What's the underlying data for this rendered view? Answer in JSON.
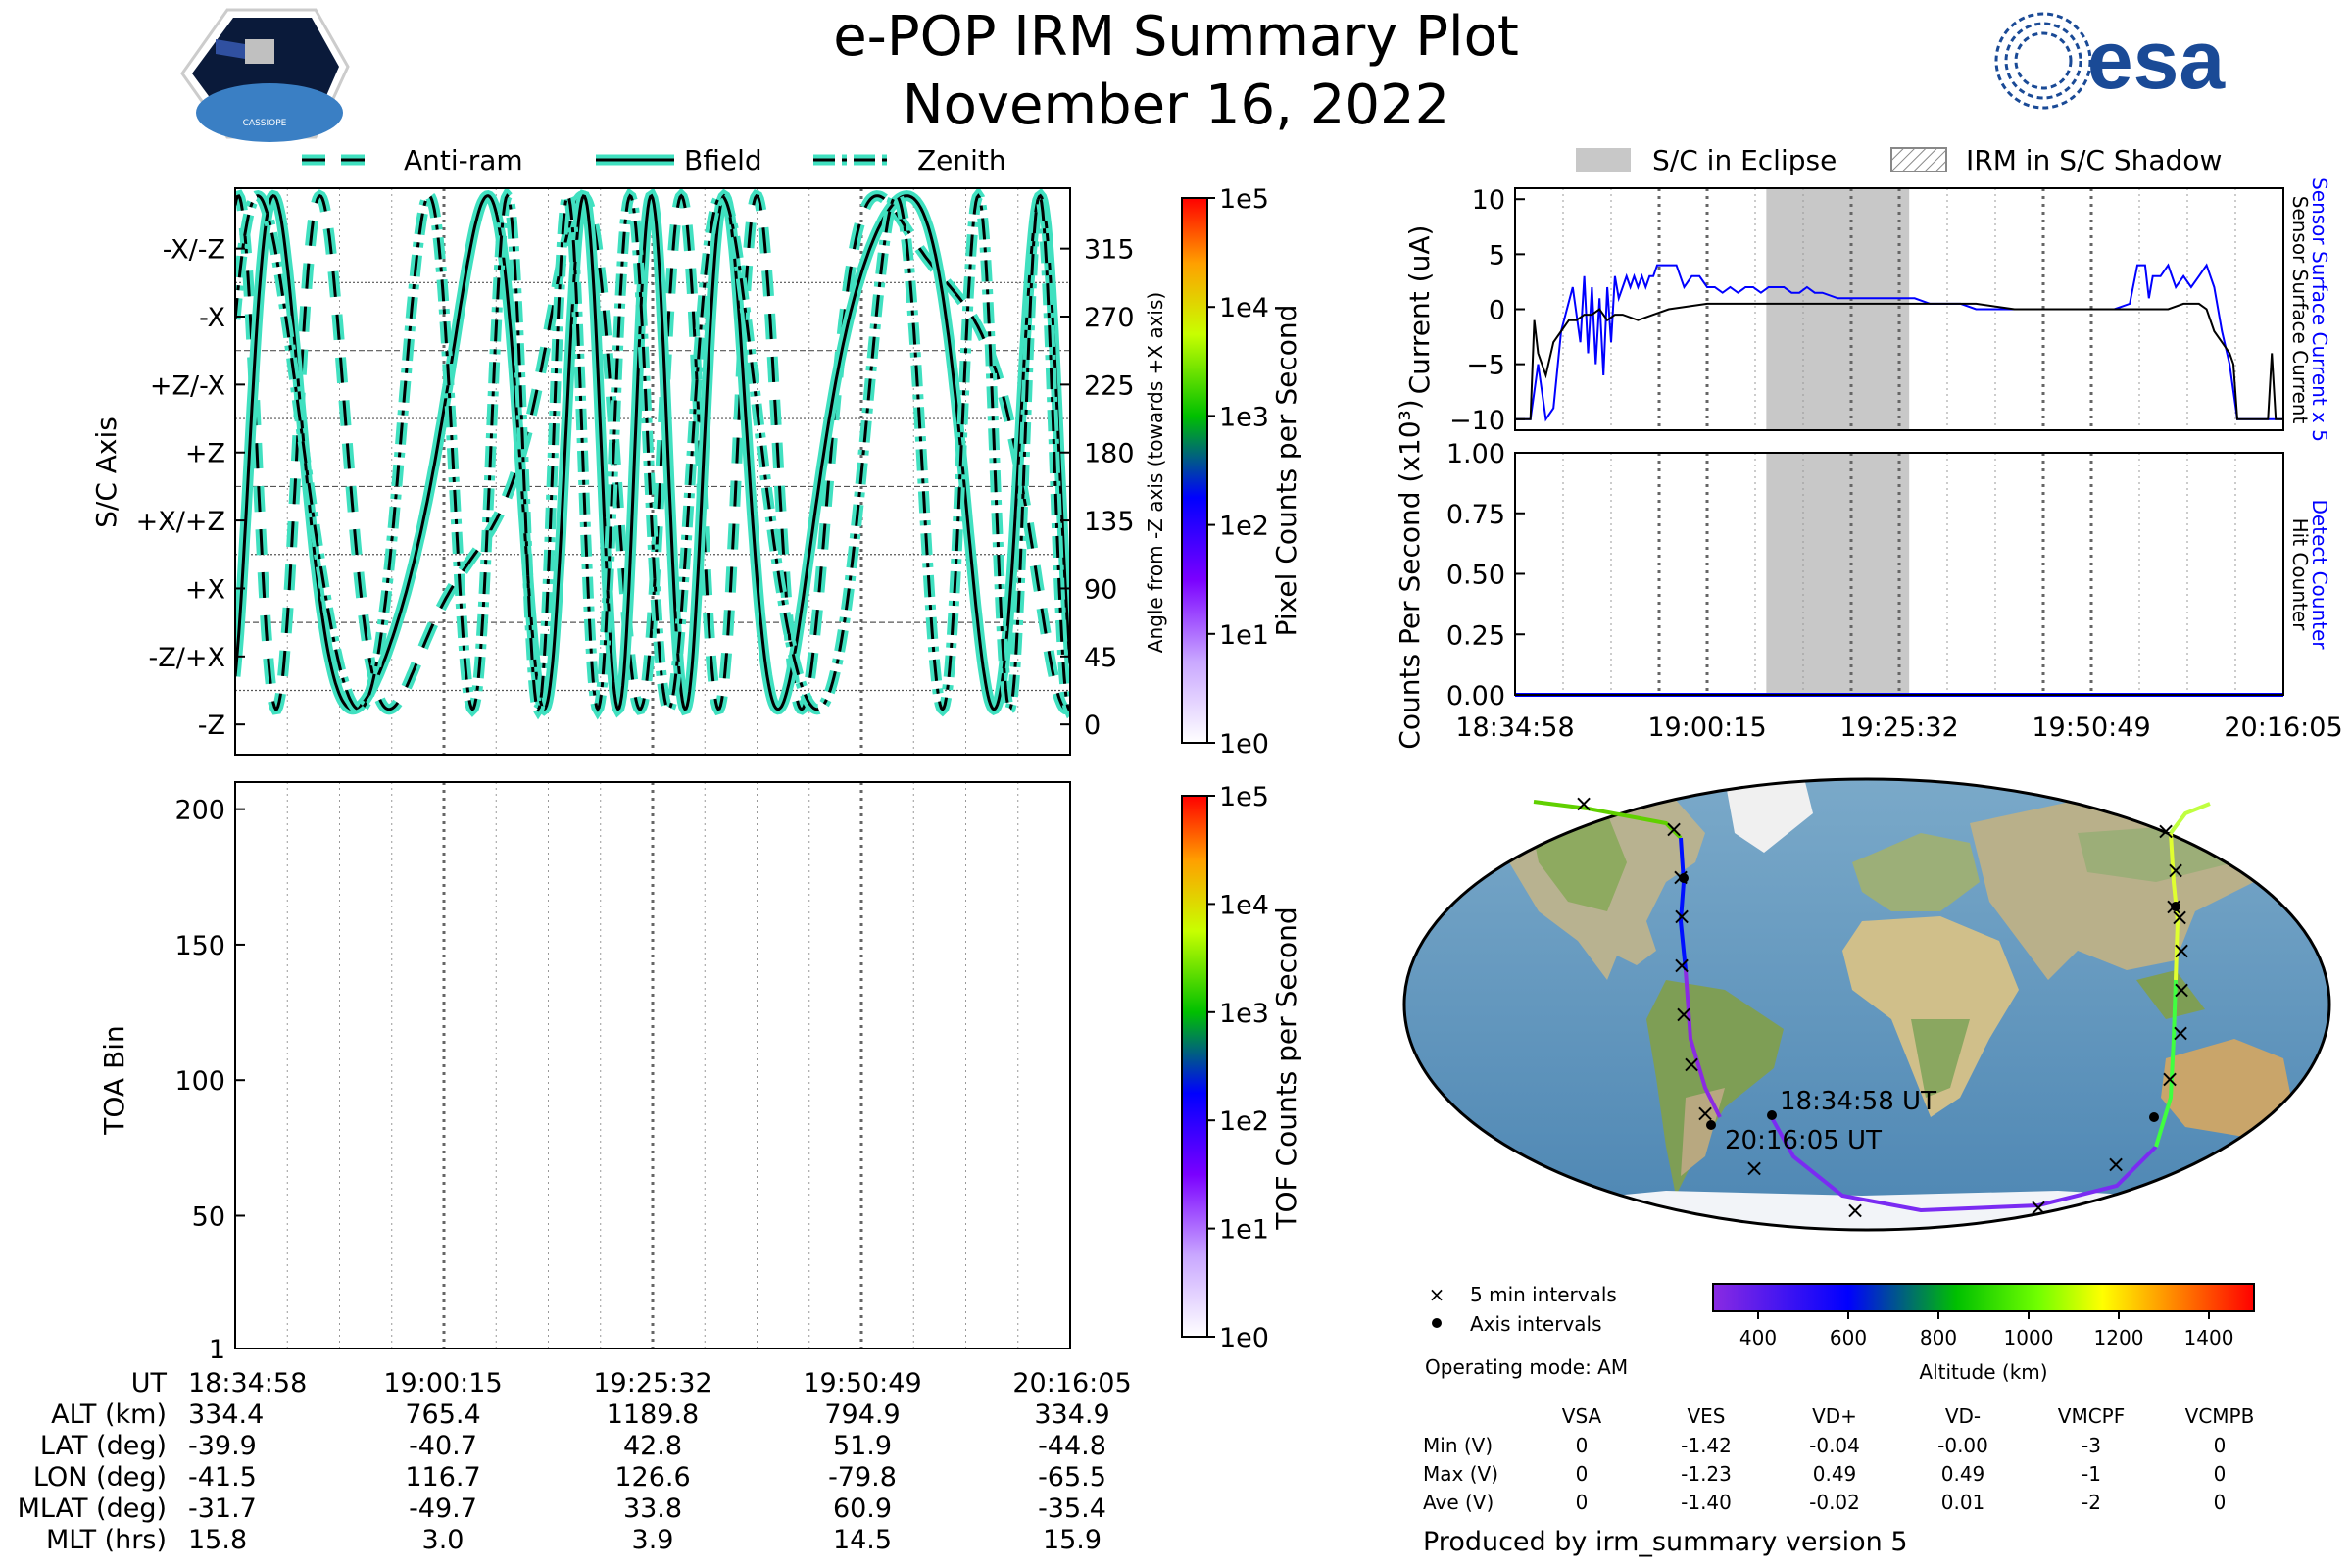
{
  "header": {
    "title": "e-POP IRM Summary Plot",
    "date": "November 16, 2022",
    "logo_left_text": "CASSIOPE",
    "logo_right_text": "esa"
  },
  "colors": {
    "curve_fill": "#40e0c0",
    "sensor_surface_x5": "#0000ff",
    "sensor_surface": "#000000",
    "eclipse": "#c8c8c8",
    "detect_counter": "#0000ff"
  },
  "colorbar_ticks": [
    "1e0",
    "1e1",
    "1e2",
    "1e3",
    "1e4",
    "1e5"
  ],
  "chart_data": [
    {
      "type": "line",
      "id": "pixel-angle",
      "legend": [
        "Anti-ram",
        "Bfield",
        "Zenith"
      ],
      "ylabel": "S/C Axis",
      "ylabel_right": "Angle from -Z axis (towards +X axis)",
      "y_axis_labels": [
        "-X/-Z",
        "-X",
        "+Z/-X",
        "+Z",
        "+X/+Z",
        "+X",
        "-Z/+X",
        "-Z"
      ],
      "y_right_ticks": [
        "315",
        "270",
        "225",
        "180",
        "135",
        "90",
        "45",
        "0"
      ],
      "ylim": [
        -20,
        355
      ],
      "colorbar_label": "Pixel Counts per Second"
    },
    {
      "type": "heatmap",
      "id": "toa",
      "ylabel": "TOA Bin",
      "yticks": [
        "1",
        "50",
        "100",
        "150",
        "200"
      ],
      "ylim": [
        1,
        210
      ],
      "colorbar_label": "TOF Counts per Second"
    },
    {
      "type": "line",
      "id": "current",
      "ylabel": "Current (uA)",
      "legend": [
        "S/C in Eclipse",
        "IRM in S/C Shadow"
      ],
      "right_labels": [
        "Sensor Surface Current x 5",
        "Sensor Surface Current"
      ],
      "yticks": [
        "10",
        "5",
        "0",
        "−5",
        "−10"
      ],
      "ylim": [
        -11,
        11
      ],
      "eclipse_x_fraction": [
        0.327,
        0.513
      ],
      "series": [
        {
          "name": "Sensor Surface Current x 5",
          "color": "#0000ff",
          "x": [
            0.0,
            0.02,
            0.03,
            0.04,
            0.05,
            0.06,
            0.075,
            0.085,
            0.09,
            0.095,
            0.1,
            0.105,
            0.11,
            0.115,
            0.12,
            0.125,
            0.13,
            0.135,
            0.14,
            0.145,
            0.15,
            0.155,
            0.16,
            0.165,
            0.17,
            0.175,
            0.18,
            0.185,
            0.19,
            0.2,
            0.21,
            0.22,
            0.23,
            0.24,
            0.25,
            0.26,
            0.27,
            0.28,
            0.29,
            0.3,
            0.31,
            0.32,
            0.33,
            0.34,
            0.35,
            0.36,
            0.37,
            0.38,
            0.39,
            0.4,
            0.42,
            0.44,
            0.46,
            0.48,
            0.5,
            0.52,
            0.54,
            0.56,
            0.58,
            0.6,
            0.62,
            0.64,
            0.66,
            0.68,
            0.7,
            0.72,
            0.74,
            0.76,
            0.78,
            0.8,
            0.81,
            0.82,
            0.825,
            0.83,
            0.84,
            0.85,
            0.86,
            0.87,
            0.88,
            0.89,
            0.9,
            0.91,
            0.92,
            0.93,
            0.94,
            0.95,
            0.96,
            0.97,
            0.98,
            0.99,
            1.0
          ],
          "y": [
            -10,
            -10,
            -5,
            -10,
            -9,
            -2,
            2,
            -3,
            3,
            -4,
            2,
            -5,
            1,
            -6,
            2,
            -3,
            3,
            1,
            2,
            3,
            2,
            3,
            2,
            3,
            2,
            3,
            3,
            4,
            4,
            4,
            4,
            2,
            3,
            3,
            2,
            2,
            1.5,
            2,
            1.5,
            2,
            2,
            1.5,
            2,
            2,
            2,
            1.5,
            1.5,
            2,
            1.5,
            1.5,
            1,
            1,
            1,
            1,
            1,
            1,
            0.5,
            0.5,
            0.5,
            0,
            0,
            0,
            0,
            0,
            0,
            0,
            0,
            0,
            0,
            0.5,
            4,
            4,
            1,
            3,
            3,
            4,
            2,
            3,
            2,
            3,
            4,
            2,
            -2,
            -5,
            -10,
            -10,
            -10,
            -10,
            -10,
            -10,
            -10
          ]
        },
        {
          "name": "Sensor Surface Current",
          "color": "#000000",
          "x": [
            0.0,
            0.02,
            0.025,
            0.03,
            0.04,
            0.05,
            0.06,
            0.07,
            0.08,
            0.09,
            0.1,
            0.11,
            0.12,
            0.13,
            0.14,
            0.16,
            0.18,
            0.2,
            0.25,
            0.3,
            0.35,
            0.4,
            0.45,
            0.5,
            0.55,
            0.6,
            0.65,
            0.7,
            0.75,
            0.8,
            0.85,
            0.87,
            0.88,
            0.89,
            0.9,
            0.91,
            0.92,
            0.93,
            0.935,
            0.94,
            0.98,
            0.985,
            0.99,
            1.0
          ],
          "y": [
            -10,
            -10,
            -1,
            -4,
            -6,
            -3,
            -2,
            -1,
            -1,
            -0.5,
            -0.5,
            0,
            -1,
            -0.5,
            -0.5,
            -1,
            -0.5,
            0,
            0.5,
            0.5,
            0.5,
            0.5,
            0.5,
            0.5,
            0.5,
            0.5,
            0,
            0,
            0,
            0,
            0,
            0.5,
            0.5,
            0.5,
            0,
            -2,
            -3,
            -4,
            -5,
            -10,
            -10,
            -4,
            -10,
            -10
          ]
        }
      ]
    },
    {
      "type": "line",
      "id": "counts",
      "ylabel": "Counts Per Second (x10³)",
      "right_labels": [
        "Detect Counter",
        "Hit Counter"
      ],
      "yticks": [
        "1.00",
        "0.75",
        "0.50",
        "0.25",
        "0.00"
      ],
      "ylim": [
        0,
        1
      ],
      "series": [
        {
          "name": "Detect Counter",
          "color": "#0000ff",
          "x": [
            0,
            1
          ],
          "y": [
            0,
            0
          ]
        }
      ]
    },
    {
      "type": "scatter",
      "id": "orbit-map",
      "annotations": [
        "18:34:58 UT",
        "20:16:05 UT"
      ],
      "legend": [
        "5 min intervals",
        "Axis intervals"
      ],
      "colorbar_label": "Altitude (km)",
      "colorbar_ticks": [
        "400",
        "600",
        "800",
        "1000",
        "1200",
        "1400"
      ],
      "operating_mode": "Operating mode: AM"
    }
  ],
  "time_axis": [
    "18:34:58",
    "19:00:15",
    "19:25:32",
    "19:50:49",
    "20:16:05"
  ],
  "summary_table": {
    "row_labels": [
      "UT",
      "ALT (km)",
      "LAT (deg)",
      "LON (deg)",
      "MLAT (deg)",
      "MLT (hrs)"
    ],
    "columns": [
      [
        "334.4",
        "-39.9",
        "-41.5",
        "-31.7",
        "15.8"
      ],
      [
        "765.4",
        "-40.7",
        "116.7",
        "-49.7",
        "3.0"
      ],
      [
        "1189.8",
        "42.8",
        "126.6",
        "33.8",
        "3.9"
      ],
      [
        "794.9",
        "51.9",
        "-79.8",
        "60.9",
        "14.5"
      ],
      [
        "334.9",
        "-44.8",
        "-65.5",
        "-35.4",
        "15.9"
      ]
    ]
  },
  "voltage_table": {
    "headers": [
      "VSA",
      "VES",
      "VD+",
      "VD-",
      "VMCPF",
      "VCMPB"
    ],
    "rows": [
      {
        "label": "Min (V)",
        "values": [
          "0",
          "-1.42",
          "-0.04",
          "-0.00",
          "-3",
          "0"
        ]
      },
      {
        "label": "Max (V)",
        "values": [
          "0",
          "-1.23",
          "0.49",
          "0.49",
          "-1",
          "0"
        ]
      },
      {
        "label": "Ave (V)",
        "values": [
          "0",
          "-1.40",
          "-0.02",
          "0.01",
          "-2",
          "0"
        ]
      }
    ]
  },
  "footer": "Produced by irm_summary version 5"
}
